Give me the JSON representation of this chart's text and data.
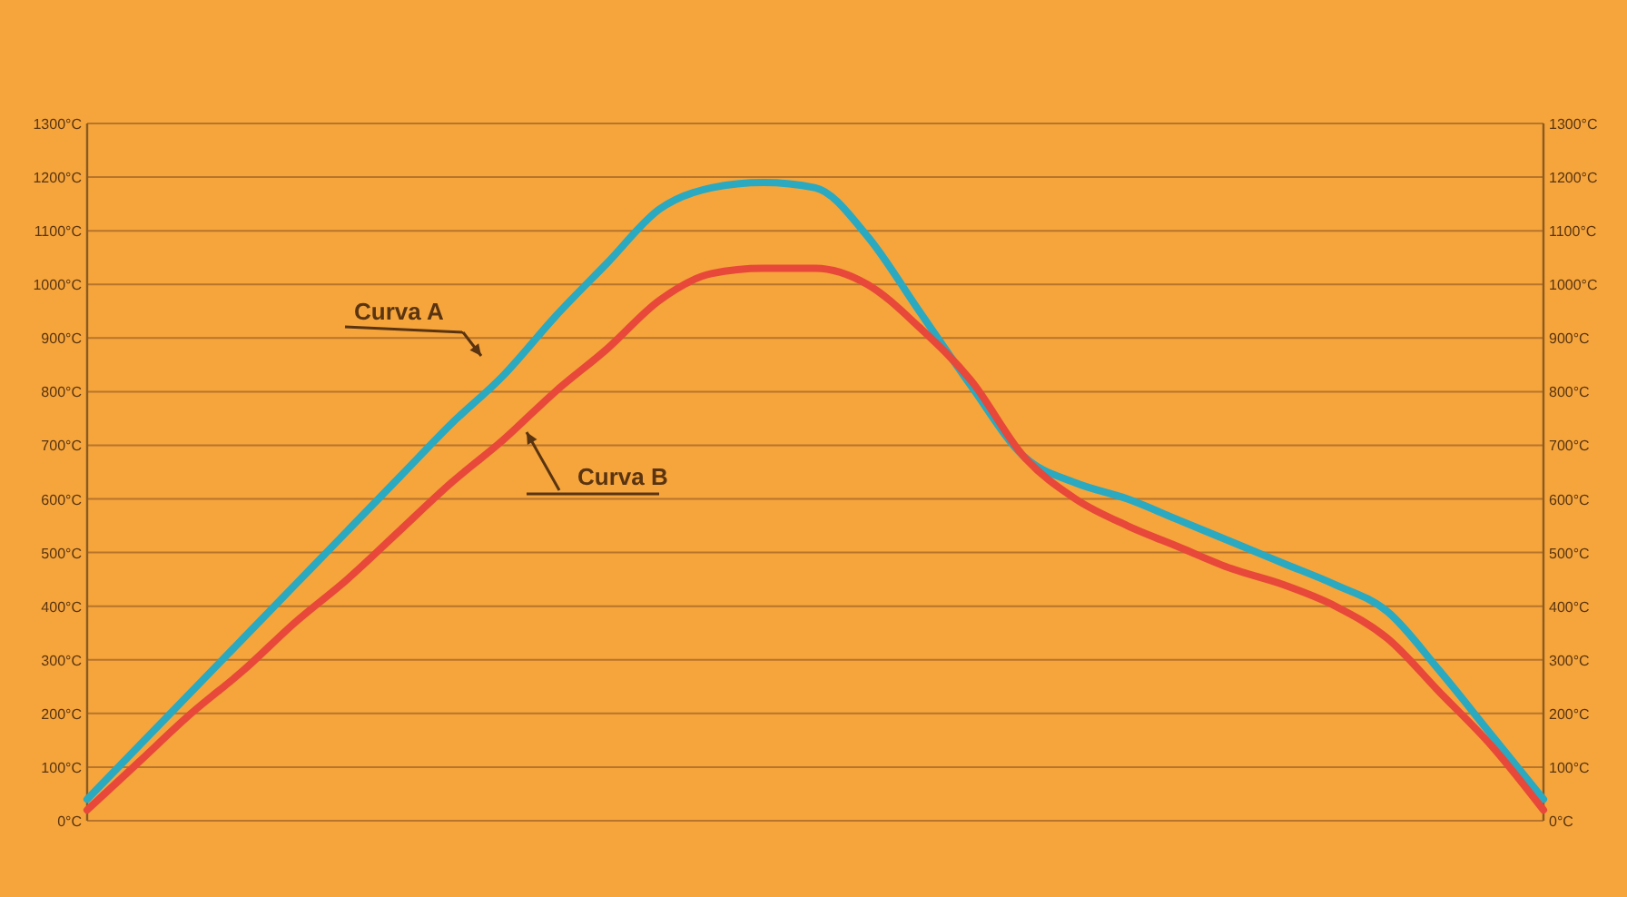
{
  "chart_data": {
    "type": "line",
    "categories": [
      null,
      null,
      null,
      null,
      null,
      null,
      null,
      null,
      null,
      null,
      null,
      null,
      null,
      null,
      null,
      null,
      null,
      null,
      null,
      null,
      null,
      null,
      null,
      null,
      null,
      null,
      null,
      null,
      null
    ],
    "series": [
      {
        "color": "#2aa9c0",
        "values": [
          40,
          140,
          240,
          340,
          440,
          540,
          640,
          740,
          830,
          940,
          1040,
          1140,
          1180,
          1190,
          1180,
          1090,
          950,
          810,
          680,
          630,
          600,
          560,
          520,
          480,
          440,
          390,
          280,
          160,
          40
        ]
      },
      {
        "color": "#e8483a",
        "values": [
          20,
          110,
          200,
          280,
          370,
          450,
          540,
          630,
          710,
          800,
          880,
          970,
          1020,
          1030,
          1030,
          1000,
          920,
          820,
          680,
          600,
          550,
          510,
          470,
          440,
          400,
          340,
          240,
          140,
          20
        ]
      }
    ],
    "ylim": [
      0,
      1300
    ],
    "yticks": [
      {
        "value": 0,
        "label": "0°C"
      },
      {
        "value": 100,
        "label": "100°C"
      },
      {
        "value": 200,
        "label": "200°C"
      },
      {
        "value": 300,
        "label": "300°C"
      },
      {
        "value": 400,
        "label": "400°C"
      },
      {
        "value": 500,
        "label": "500°C"
      },
      {
        "value": 600,
        "label": "600°C"
      },
      {
        "value": 700,
        "label": "700°C"
      },
      {
        "value": 800,
        "label": "800°C"
      },
      {
        "value": 900,
        "label": "900°C"
      },
      {
        "value": 1000,
        "label": "1000°C"
      },
      {
        "value": 1100,
        "label": "1100°C"
      },
      {
        "value": 1200,
        "label": "1200°C"
      },
      {
        "value": 1300,
        "label": "1300°C"
      }
    ],
    "y2lim": [
      0,
      1300
    ],
    "y2ticks": [
      {
        "value": 0,
        "label": "0°C"
      },
      {
        "value": 100,
        "label": "100°C"
      },
      {
        "value": 200,
        "label": "200°C"
      },
      {
        "value": 300,
        "label": "300°C"
      },
      {
        "value": 400,
        "label": "400°C"
      },
      {
        "value": 500,
        "label": "500°C"
      },
      {
        "value": 600,
        "label": "600°C"
      },
      {
        "value": 700,
        "label": "700°C"
      },
      {
        "value": 800,
        "label": "800°C"
      },
      {
        "value": 900,
        "label": "900°C"
      },
      {
        "value": 1000,
        "label": "1000°C"
      },
      {
        "value": 1100,
        "label": "1100°C"
      },
      {
        "value": 1200,
        "label": "1200°C"
      },
      {
        "value": 1300,
        "label": "1300°C"
      }
    ],
    "annotations": [
      "Curva A",
      "Curva B"
    ],
    "grid": "y",
    "marker": "none",
    "line_style": "solid"
  }
}
